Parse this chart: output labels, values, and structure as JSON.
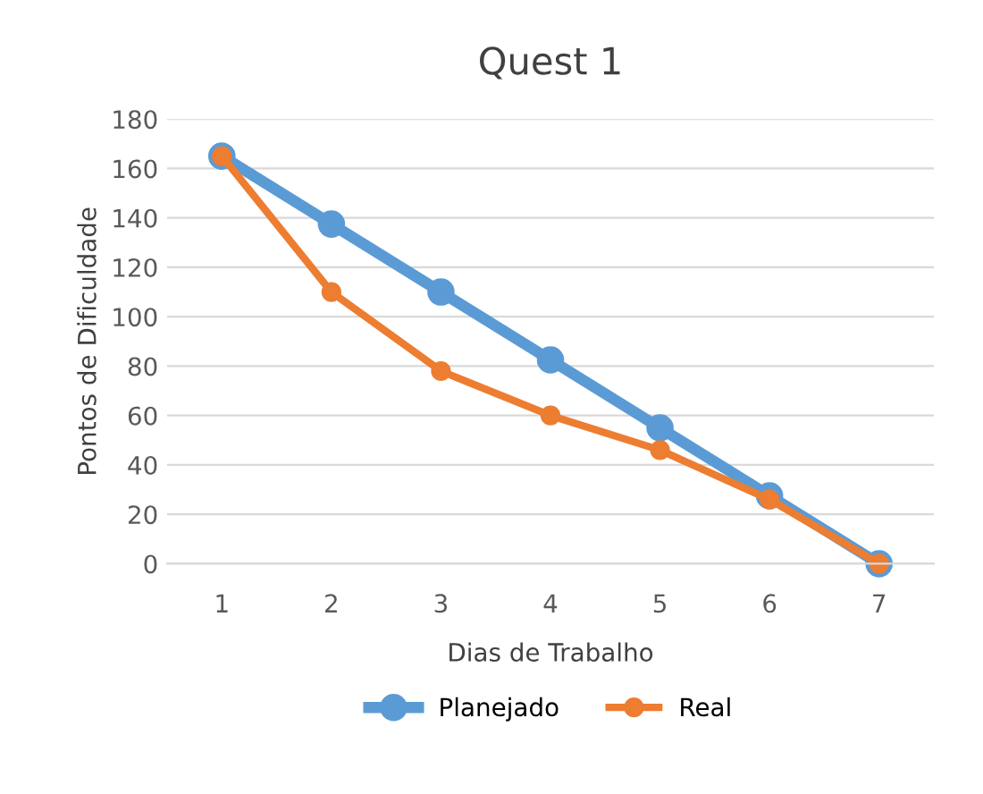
{
  "chart_data": {
    "type": "line",
    "title": "Quest 1",
    "xlabel": "Dias de Trabalho",
    "ylabel": "Pontos de Dificuldade",
    "categories": [
      "1",
      "2",
      "3",
      "4",
      "5",
      "6",
      "7"
    ],
    "series": [
      {
        "name": "Planejado",
        "color": "#5b9bd5",
        "values": [
          165,
          137.5,
          110,
          82.5,
          55,
          27.5,
          0
        ]
      },
      {
        "name": "Real",
        "color": "#ed7d31",
        "values": [
          165,
          110,
          78,
          60,
          46,
          26,
          0
        ]
      }
    ],
    "ylim": [
      0,
      180
    ],
    "yticks": [
      0,
      20,
      40,
      60,
      80,
      100,
      120,
      140,
      160,
      180
    ],
    "grid": "y",
    "legend": "bottom",
    "marker": "circle",
    "line_style": "solid"
  }
}
